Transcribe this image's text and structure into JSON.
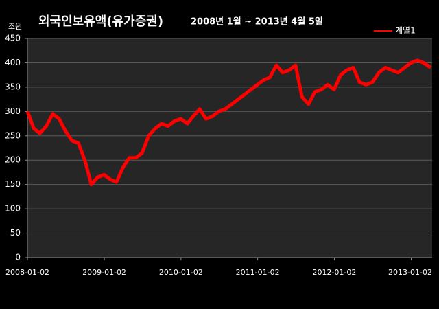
{
  "chart_data": {
    "type": "line",
    "title": "외국인보유액(유가증권)",
    "subtitle": "2008년 1월 ~ 2013년 4월 5일",
    "y_label": "조원",
    "x": [
      "2008-01-02",
      "2008-02-01",
      "2008-03-01",
      "2008-04-01",
      "2008-05-01",
      "2008-06-01",
      "2008-07-01",
      "2008-08-01",
      "2008-09-01",
      "2008-10-01",
      "2008-11-01",
      "2008-12-01",
      "2009-01-01",
      "2009-02-01",
      "2009-03-01",
      "2009-04-01",
      "2009-05-01",
      "2009-06-01",
      "2009-07-01",
      "2009-08-01",
      "2009-09-01",
      "2009-10-01",
      "2009-11-01",
      "2009-12-01",
      "2010-01-01",
      "2010-02-01",
      "2010-03-01",
      "2010-04-01",
      "2010-05-01",
      "2010-06-01",
      "2010-07-01",
      "2010-08-01",
      "2010-09-01",
      "2010-10-01",
      "2010-11-01",
      "2010-12-01",
      "2011-01-01",
      "2011-02-01",
      "2011-03-01",
      "2011-04-01",
      "2011-05-01",
      "2011-06-01",
      "2011-07-01",
      "2011-08-01",
      "2011-09-01",
      "2011-10-01",
      "2011-11-01",
      "2011-12-01",
      "2012-01-01",
      "2012-02-01",
      "2012-03-01",
      "2012-04-01",
      "2012-05-01",
      "2012-06-01",
      "2012-07-01",
      "2012-08-01",
      "2012-09-01",
      "2012-10-01",
      "2012-11-01",
      "2012-12-01",
      "2013-01-01",
      "2013-02-01",
      "2013-03-01",
      "2013-04-05"
    ],
    "series": [
      {
        "name": "계열1",
        "color": "#ff0000",
        "values": [
          300,
          265,
          255,
          270,
          295,
          285,
          260,
          240,
          235,
          200,
          150,
          165,
          170,
          160,
          155,
          185,
          205,
          205,
          215,
          250,
          265,
          275,
          270,
          280,
          285,
          275,
          290,
          305,
          285,
          290,
          300,
          305,
          315,
          325,
          335,
          345,
          355,
          365,
          370,
          395,
          380,
          385,
          395,
          330,
          315,
          340,
          345,
          355,
          345,
          375,
          385,
          390,
          360,
          355,
          360,
          380,
          390,
          385,
          380,
          390,
          400,
          405,
          400,
          390
        ]
      }
    ],
    "xlim": [
      "2008-01-02",
      "2013-04-05"
    ],
    "xticks": [
      "2008-01-02",
      "2009-01-02",
      "2010-01-02",
      "2011-01-02",
      "2012-01-02",
      "2013-01-02"
    ],
    "ylim": [
      0,
      450
    ],
    "yticks": [
      0,
      50,
      100,
      150,
      200,
      250,
      300,
      350,
      400,
      450
    ],
    "grid": true,
    "legend": "top-right"
  }
}
